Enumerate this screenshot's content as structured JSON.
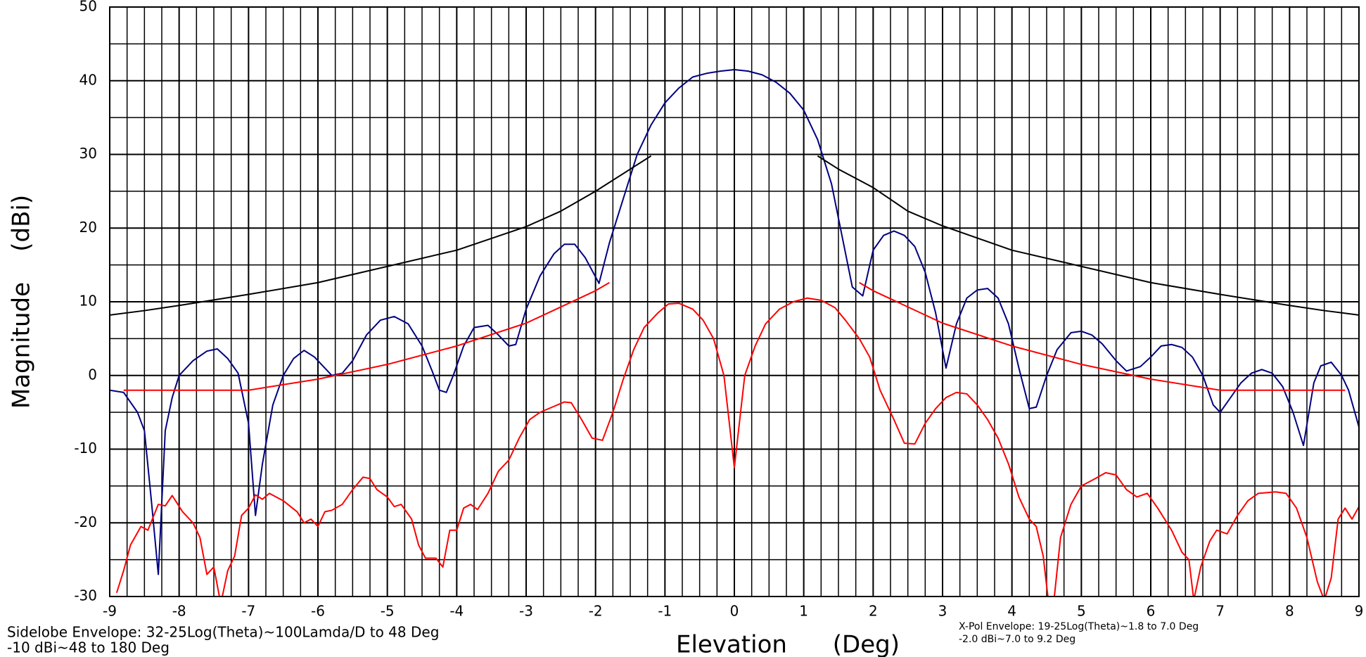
{
  "chart_data": {
    "type": "line",
    "x_label": "Elevation      (Deg)",
    "y_label": "Magnitude    (dBi)",
    "annotations": [
      "Sidelobe Envelope: 32-25Log(Theta)~100Lamda/D to 48 Deg",
      "-10 dBi~48 to 180 Deg",
      "X-Pol Envelope: 19-25Log(Theta)~1.8 to 7.0 Deg",
      "-2.0 dBi~7.0 to 9.2 Deg"
    ],
    "xlim": [
      -9,
      9
    ],
    "ylim": [
      -30,
      50
    ],
    "xticks": [
      -9,
      -8,
      -7,
      -6,
      -5,
      -4,
      -3,
      -2,
      -1,
      0,
      1,
      2,
      3,
      4,
      5,
      6,
      7,
      8,
      9
    ],
    "yticks": [
      -30,
      -20,
      -10,
      0,
      10,
      20,
      30,
      40,
      50
    ],
    "grid": true,
    "minor_grid_step": {
      "x": 0.25,
      "y": 5
    },
    "series": [
      {
        "color": "#000080",
        "x": [
          -9,
          -8.8,
          -8.6,
          -8.5,
          -8.4,
          -8.3,
          -8.2,
          -8.1,
          -8.0,
          -7.8,
          -7.6,
          -7.45,
          -7.3,
          -7.15,
          -7.0,
          -6.9,
          -6.8,
          -6.65,
          -6.5,
          -6.35,
          -6.2,
          -6.05,
          -5.9,
          -5.8,
          -5.65,
          -5.5,
          -5.3,
          -5.1,
          -4.9,
          -4.7,
          -4.5,
          -4.35,
          -4.25,
          -4.15,
          -4.05,
          -3.9,
          -3.75,
          -3.55,
          -3.4,
          -3.25,
          -3.15,
          -3.0,
          -2.8,
          -2.6,
          -2.45,
          -2.3,
          -2.15,
          -1.95,
          -1.8,
          -1.6,
          -1.4,
          -1.2,
          -1.0,
          -0.8,
          -0.6,
          -0.4,
          -0.2,
          0,
          0.2,
          0.4,
          0.6,
          0.8,
          1.0,
          1.2,
          1.4,
          1.55,
          1.7,
          1.85,
          2.0,
          2.15,
          2.3,
          2.45,
          2.6,
          2.75,
          2.9,
          3.05,
          3.2,
          3.35,
          3.5,
          3.65,
          3.8,
          3.95,
          4.1,
          4.25,
          4.35,
          4.5,
          4.65,
          4.85,
          5.0,
          5.15,
          5.3,
          5.5,
          5.65,
          5.85,
          6.0,
          6.15,
          6.3,
          6.45,
          6.6,
          6.75,
          6.9,
          7.0,
          7.15,
          7.3,
          7.45,
          7.6,
          7.75,
          7.9,
          8.05,
          8.2,
          8.35,
          8.45,
          8.6,
          8.75,
          8.85,
          9.0
        ],
        "values": [
          -2,
          -2.3,
          -5,
          -7.5,
          -17,
          -27,
          -7.5,
          -3,
          0,
          2,
          3.3,
          3.6,
          2.3,
          0.3,
          -6.5,
          -19,
          -12,
          -4,
          0,
          2.3,
          3.4,
          2.5,
          1,
          0,
          0.3,
          2,
          5.5,
          7.5,
          8,
          7,
          4,
          0.5,
          -2,
          -2.3,
          0,
          4,
          6.5,
          6.8,
          5.5,
          4,
          4.2,
          9,
          13.5,
          16.5,
          17.8,
          17.8,
          16,
          12.5,
          18,
          24,
          30,
          34,
          37,
          39,
          40.5,
          41,
          41.3,
          41.5,
          41.3,
          40.8,
          39.8,
          38.3,
          36,
          32,
          26,
          19,
          12,
          10.8,
          17,
          19,
          19.6,
          19,
          17.5,
          14,
          8.5,
          1,
          7,
          10.5,
          11.6,
          11.8,
          10.5,
          7,
          1,
          -4.5,
          -4.3,
          0,
          3.5,
          5.8,
          6,
          5.5,
          4.3,
          2,
          0.6,
          1.2,
          2.5,
          4,
          4.2,
          3.8,
          2.5,
          0,
          -4,
          -5,
          -3,
          -1,
          0.3,
          0.8,
          0.3,
          -1.5,
          -5,
          -9.5,
          -1,
          1.3,
          1.8,
          0,
          -2,
          -7
        ]
      },
      {
        "color": "#ff0000",
        "x": [
          -8.9,
          -8.8,
          -8.7,
          -8.55,
          -8.45,
          -8.3,
          -8.2,
          -8.1,
          -7.95,
          -7.8,
          -7.7,
          -7.6,
          -7.5,
          -7.4,
          -7.3,
          -7.2,
          -7.1,
          -7.0,
          -6.9,
          -6.8,
          -6.7,
          -6.5,
          -6.3,
          -6.2,
          -6.1,
          -6.0,
          -5.9,
          -5.8,
          -5.65,
          -5.5,
          -5.35,
          -5.25,
          -5.15,
          -5.0,
          -4.9,
          -4.8,
          -4.65,
          -4.55,
          -4.45,
          -4.3,
          -4.2,
          -4.1,
          -4.0,
          -3.9,
          -3.8,
          -3.7,
          -3.55,
          -3.4,
          -3.25,
          -3.1,
          -2.95,
          -2.8,
          -2.6,
          -2.45,
          -2.35,
          -2.2,
          -2.05,
          -1.9,
          -1.75,
          -1.6,
          -1.45,
          -1.3,
          -1.1,
          -0.95,
          -0.8,
          -0.6,
          -0.45,
          -0.3,
          -0.15,
          0,
          0.15,
          0.3,
          0.45,
          0.65,
          0.85,
          1.05,
          1.25,
          1.45,
          1.6,
          1.8,
          1.95,
          2.1,
          2.3,
          2.45,
          2.6,
          2.75,
          2.9,
          3.05,
          3.2,
          3.35,
          3.5,
          3.65,
          3.8,
          3.95,
          4.1,
          4.25,
          4.35,
          4.45,
          4.53,
          4.6,
          4.7,
          4.85,
          5.0,
          5.2,
          5.35,
          5.5,
          5.65,
          5.8,
          5.95,
          6.1,
          6.3,
          6.45,
          6.55,
          6.62,
          6.72,
          6.85,
          6.95,
          7.1,
          7.25,
          7.4,
          7.55,
          7.8,
          7.95,
          8.1,
          8.25,
          8.4,
          8.5,
          8.6,
          8.7,
          8.8,
          8.9,
          9.0
        ],
        "values": [
          -29.5,
          -26.5,
          -23,
          -20.5,
          -21,
          -17.5,
          -17.7,
          -16.3,
          -18.5,
          -20,
          -22,
          -27,
          -26,
          -31,
          -26.5,
          -24.5,
          -19,
          -18,
          -16.2,
          -16.8,
          -16,
          -17,
          -18.5,
          -20,
          -19.5,
          -20.5,
          -18.5,
          -18.3,
          -17.5,
          -15.5,
          -13.8,
          -14,
          -15.5,
          -16.5,
          -17.8,
          -17.5,
          -19.5,
          -23,
          -24.8,
          -24.8,
          -26,
          -21,
          -21,
          -18,
          -17.5,
          -18.2,
          -16,
          -13,
          -11.5,
          -8.5,
          -6,
          -5,
          -4.2,
          -3.6,
          -3.7,
          -6,
          -8.5,
          -8.8,
          -5,
          -0.5,
          3.5,
          6.5,
          8.5,
          9.7,
          9.8,
          9,
          7.5,
          5,
          0,
          -12.5,
          0,
          4,
          7,
          9,
          10,
          10.5,
          10.2,
          9.2,
          7.5,
          5,
          2.5,
          -2,
          -6,
          -9.2,
          -9.3,
          -6.5,
          -4.5,
          -3,
          -2.3,
          -2.5,
          -4,
          -6,
          -8.5,
          -12,
          -16.5,
          -19.5,
          -20.5,
          -24.5,
          -31,
          -31,
          -22,
          -17.5,
          -15,
          -14,
          -13.2,
          -13.5,
          -15.5,
          -16.5,
          -16,
          -18,
          -21,
          -24,
          -25,
          -30.5,
          -26,
          -22.5,
          -21,
          -21.5,
          -19,
          -17,
          -16,
          -15.8,
          -16,
          -18,
          -22,
          -28,
          -30.5,
          -27.5,
          -19.5,
          -18,
          -19.5,
          -17.8
        ]
      },
      {
        "color": "#000000",
        "x": [
          -9,
          -8.5,
          -8,
          -7,
          -6,
          -5,
          -4,
          -3,
          -2.5,
          -2,
          -1.5,
          -1.2
        ],
        "values": [
          8.2,
          8.8,
          9.5,
          11,
          12.6,
          14.8,
          17,
          20.2,
          22.3,
          25,
          28,
          29.8
        ]
      },
      {
        "color": "#000000",
        "x": [
          1.2,
          1.5,
          2,
          2.5,
          3,
          4,
          5,
          6,
          7,
          8,
          8.5,
          9
        ],
        "values": [
          29.8,
          28,
          25.5,
          22.3,
          20.3,
          17,
          14.8,
          12.6,
          11,
          9.5,
          8.8,
          8.2
        ]
      },
      {
        "color": "#ff0000",
        "x": [
          -8.8,
          -7,
          -6,
          -5,
          -4,
          -3,
          -2,
          -1.8
        ],
        "values": [
          -2,
          -2,
          -0.5,
          1.5,
          4,
          7.1,
          11.5,
          12.6
        ]
      },
      {
        "color": "#ff0000",
        "x": [
          1.8,
          2,
          3,
          4,
          5,
          6,
          7,
          8.8
        ],
        "values": [
          12.6,
          11.5,
          7.1,
          4,
          1.5,
          -0.5,
          -2,
          -2
        ]
      }
    ]
  }
}
